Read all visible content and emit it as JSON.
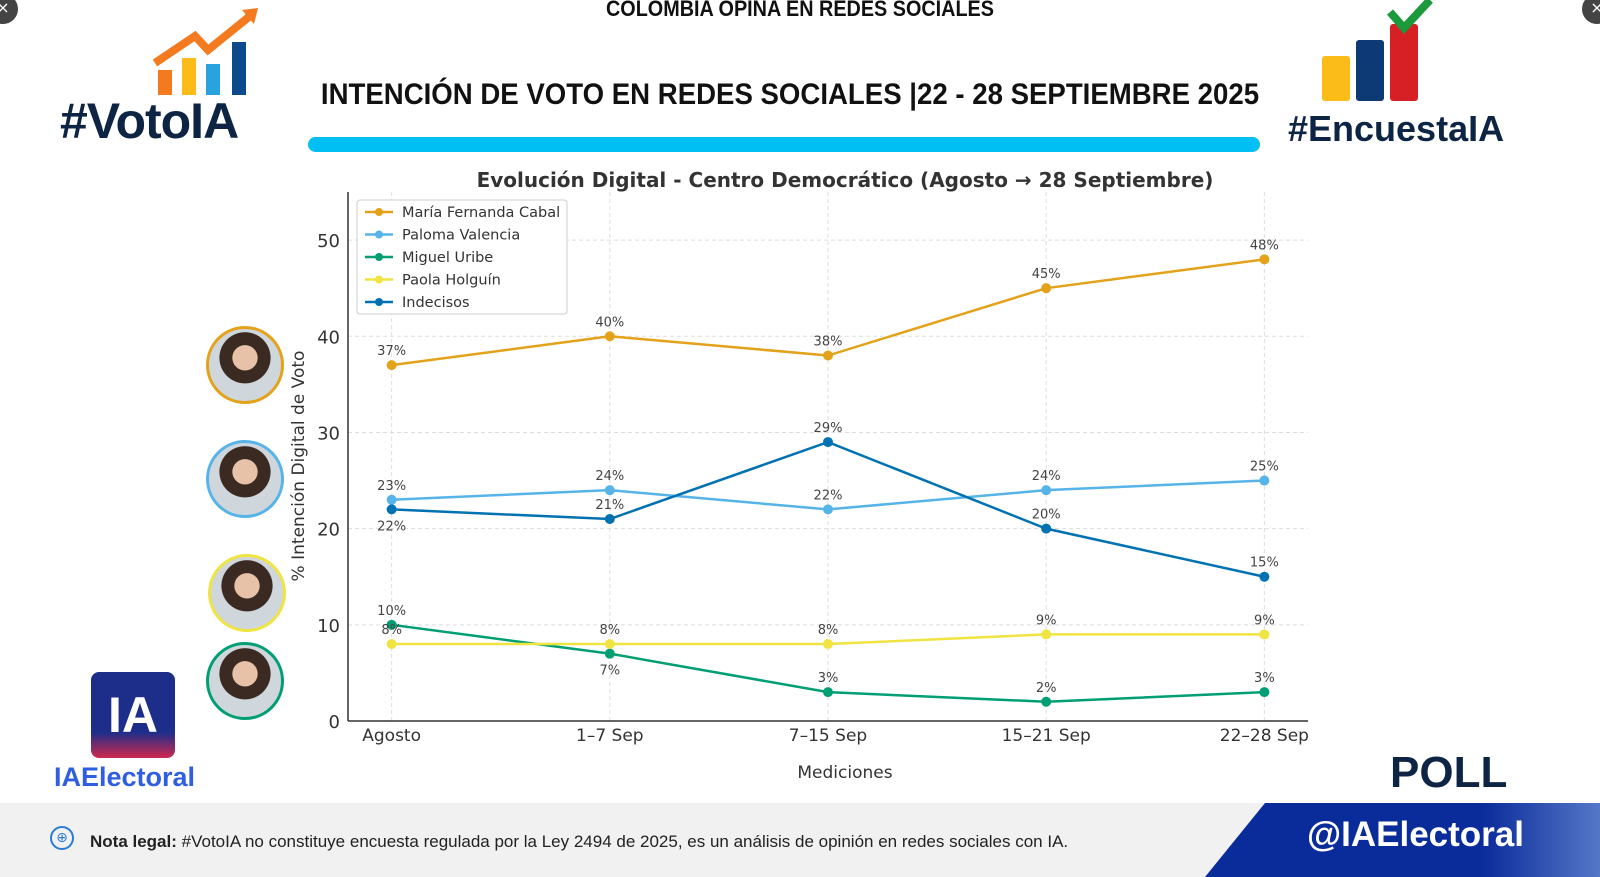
{
  "header": {
    "top_text": "COLOMBIA OPINA EN REDES SOCIALES",
    "title": "INTENCIÓN DE VOTO EN REDES SOCIALES |22 - 28 SEPTIEMBRE 2025",
    "left_logo": "#VotoIA",
    "right_logo": "#EncuestaIA"
  },
  "branding": {
    "ia_logo": "IA",
    "ia_name": "IAElectoral",
    "poll": "POLL",
    "handle": "@IAElectoral"
  },
  "footer": {
    "nota_label": "Nota legal:",
    "nota_text": " #VotoIA no constituye encuesta regulada por la Ley 2494 de 2025, es un análisis de opinión en redes sociales con IA."
  },
  "photos": [
    {
      "border": "#e3a21a"
    },
    {
      "border": "#56b4e9"
    },
    {
      "border": "#f0e442"
    },
    {
      "border": "#009e73"
    }
  ],
  "chart_data": {
    "type": "line",
    "title": "Evolución Digital - Centro Democrático (Agosto → 28 Septiembre)",
    "xlabel": "Mediciones",
    "ylabel": "% Intención Digital de Voto",
    "categories": [
      "Agosto",
      "1–7 Sep",
      "7–15 Sep",
      "15–21 Sep",
      "22–28 Sep"
    ],
    "ylim": [
      0,
      55
    ],
    "yticks": [
      0,
      10,
      20,
      30,
      40,
      50
    ],
    "grid": true,
    "legend": "top-left",
    "series": [
      {
        "name": "María Fernanda Cabal",
        "color": "#e3a21a",
        "values": [
          37,
          40,
          38,
          45,
          48
        ]
      },
      {
        "name": "Paloma Valencia",
        "color": "#56b4e9",
        "values": [
          23,
          24,
          22,
          24,
          25
        ]
      },
      {
        "name": "Miguel Uribe",
        "color": "#009e73",
        "values": [
          10,
          7,
          3,
          2,
          3
        ]
      },
      {
        "name": "Paola Holguín",
        "color": "#f0e442",
        "values": [
          8,
          8,
          8,
          9,
          9
        ]
      },
      {
        "name": "Indecisos",
        "color": "#0072b2",
        "values": [
          22,
          21,
          29,
          20,
          15
        ]
      }
    ]
  }
}
